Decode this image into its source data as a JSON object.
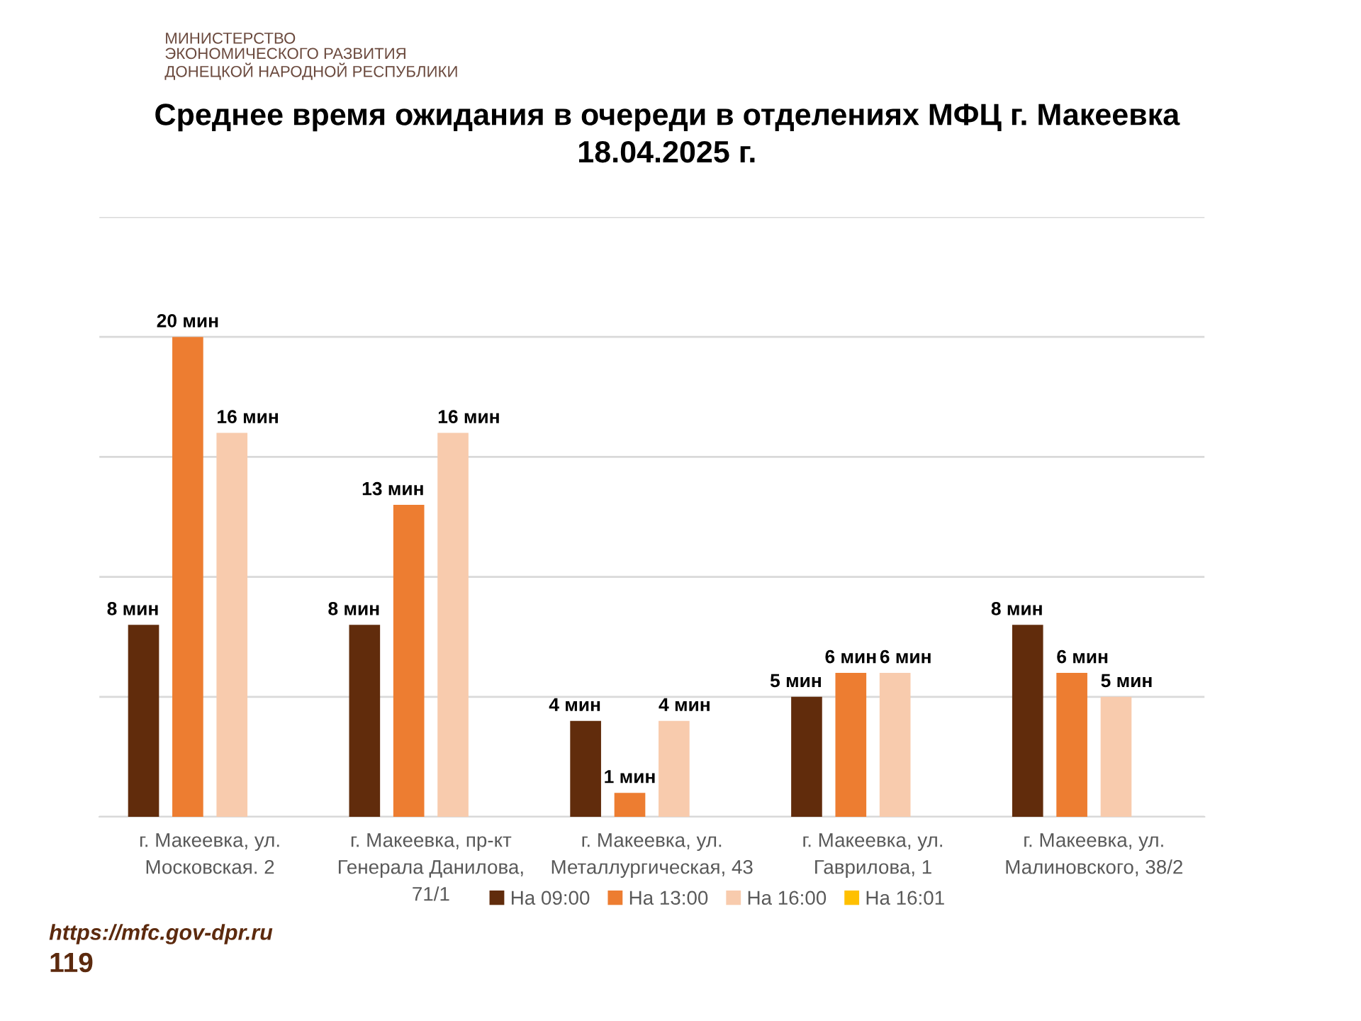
{
  "chart_data": {
    "type": "bar",
    "title": "Среднее время ожидания в очереди в отделениях МФЦ г. Макеевка\n18.04.2025 г.",
    "categories": [
      "г. Макеевка, ул.\nМосковская. 2",
      "г. Макеевка, пр-кт\nГенерала Данилова,\n71/1",
      "г. Макеевка, ул.\nМеталлургическая, 43",
      "г. Макеевка, ул.\nГаврилова, 1",
      "г. Макеевка, ул.\nМалиновского, 38/2"
    ],
    "series": [
      {
        "name": "На 09:00",
        "color": "#612c0c",
        "values": [
          8,
          8,
          4,
          5,
          8
        ],
        "value_labels": [
          "8 мин",
          "8 мин",
          "4 мин",
          "5 мин",
          "8 мин"
        ]
      },
      {
        "name": "На 13:00",
        "color": "#ed7d31",
        "values": [
          20,
          13,
          1,
          6,
          6
        ],
        "value_labels": [
          "20 мин",
          "13 мин",
          "1 мин",
          "6 мин",
          "6 мин"
        ]
      },
      {
        "name": "На 16:00",
        "color": "#f8cbad",
        "values": [
          16,
          16,
          4,
          6,
          5
        ],
        "value_labels": [
          "16 мин",
          "16 мин",
          "4 мин",
          "6 мин",
          "5 мин"
        ]
      },
      {
        "name": "На 16:01",
        "color": "#ffc000",
        "values": [
          null,
          null,
          null,
          null,
          null
        ]
      }
    ],
    "ylim": [
      0,
      25
    ],
    "yticks": [
      {
        "value": 0,
        "label": null
      },
      {
        "value": 5,
        "label": null
      },
      {
        "value": 10,
        "label": null
      },
      {
        "value": 15,
        "label": null
      },
      {
        "value": 20,
        "label": null
      },
      {
        "value": 25,
        "label": null
      }
    ],
    "tick_labels": "x",
    "grid": "y",
    "legend": "bottom",
    "annotations": [
      "МИНИСТЕРСТВО\nЭКОНОМИЧЕСКОГО РАЗВИТИЯ\nДОНЕЦКОЙ НАРОДНОЙ РЕСПУБЛИКИ",
      "https://mfc.gov-dpr.ru",
      "119"
    ]
  }
}
